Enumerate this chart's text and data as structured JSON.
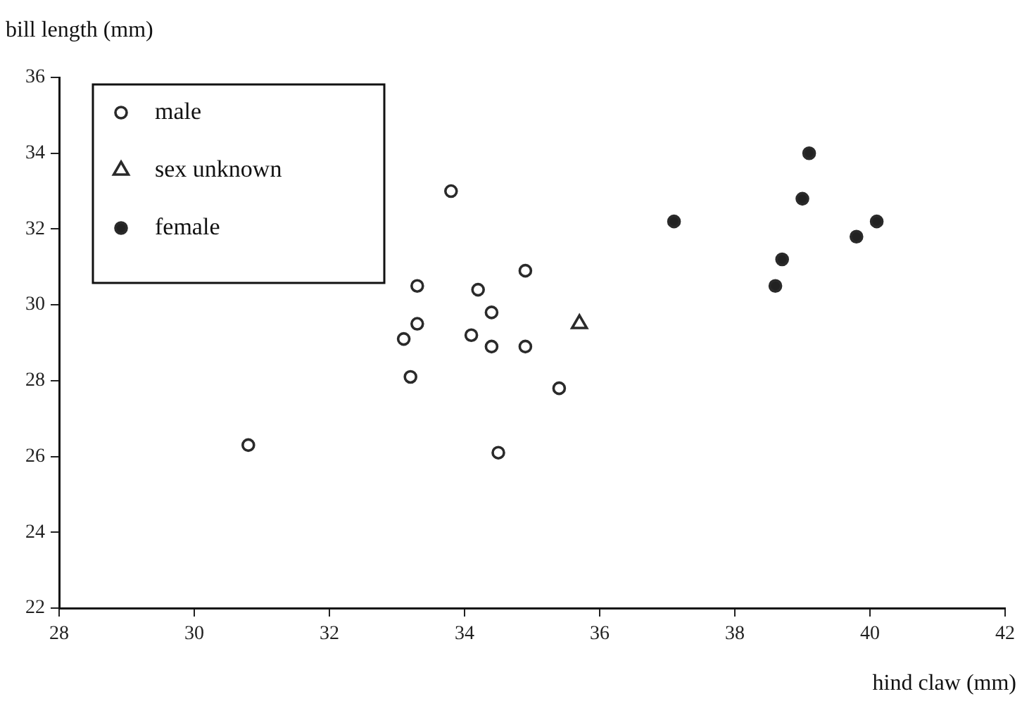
{
  "chart_data": {
    "type": "scatter",
    "xlabel": "hind claw (mm)",
    "ylabel": "bill length (mm)",
    "xlim": [
      28,
      42
    ],
    "xticks": [
      28,
      30,
      32,
      34,
      36,
      38,
      40,
      42
    ],
    "ylim": [
      22,
      36
    ],
    "yticks": [
      22,
      24,
      26,
      28,
      30,
      32,
      34,
      36
    ],
    "grid": false,
    "legend": "top left",
    "series": [
      {
        "name": "male",
        "color": "#ffffff",
        "marker": "circle",
        "x": [
          30.8,
          33.1,
          33.2,
          33.3,
          33.3,
          33.8,
          34.1,
          34.2,
          34.4,
          34.4,
          34.5,
          34.9,
          34.9,
          35.4
        ],
        "values": [
          26.3,
          29.1,
          28.1,
          29.5,
          30.5,
          33.0,
          29.2,
          30.4,
          29.8,
          28.9,
          26.1,
          28.9,
          30.9,
          27.8
        ]
      },
      {
        "name": "sex unknown",
        "color": "#ffffff",
        "marker": "triangle",
        "x": [
          35.7
        ],
        "values": [
          29.5
        ]
      },
      {
        "name": "female",
        "color": "#222222",
        "marker": "circle",
        "x": [
          37.1,
          38.6,
          38.7,
          39.0,
          39.1,
          39.8,
          40.1
        ],
        "values": [
          32.2,
          30.5,
          31.2,
          32.8,
          34.0,
          31.8,
          32.2
        ]
      }
    ]
  }
}
